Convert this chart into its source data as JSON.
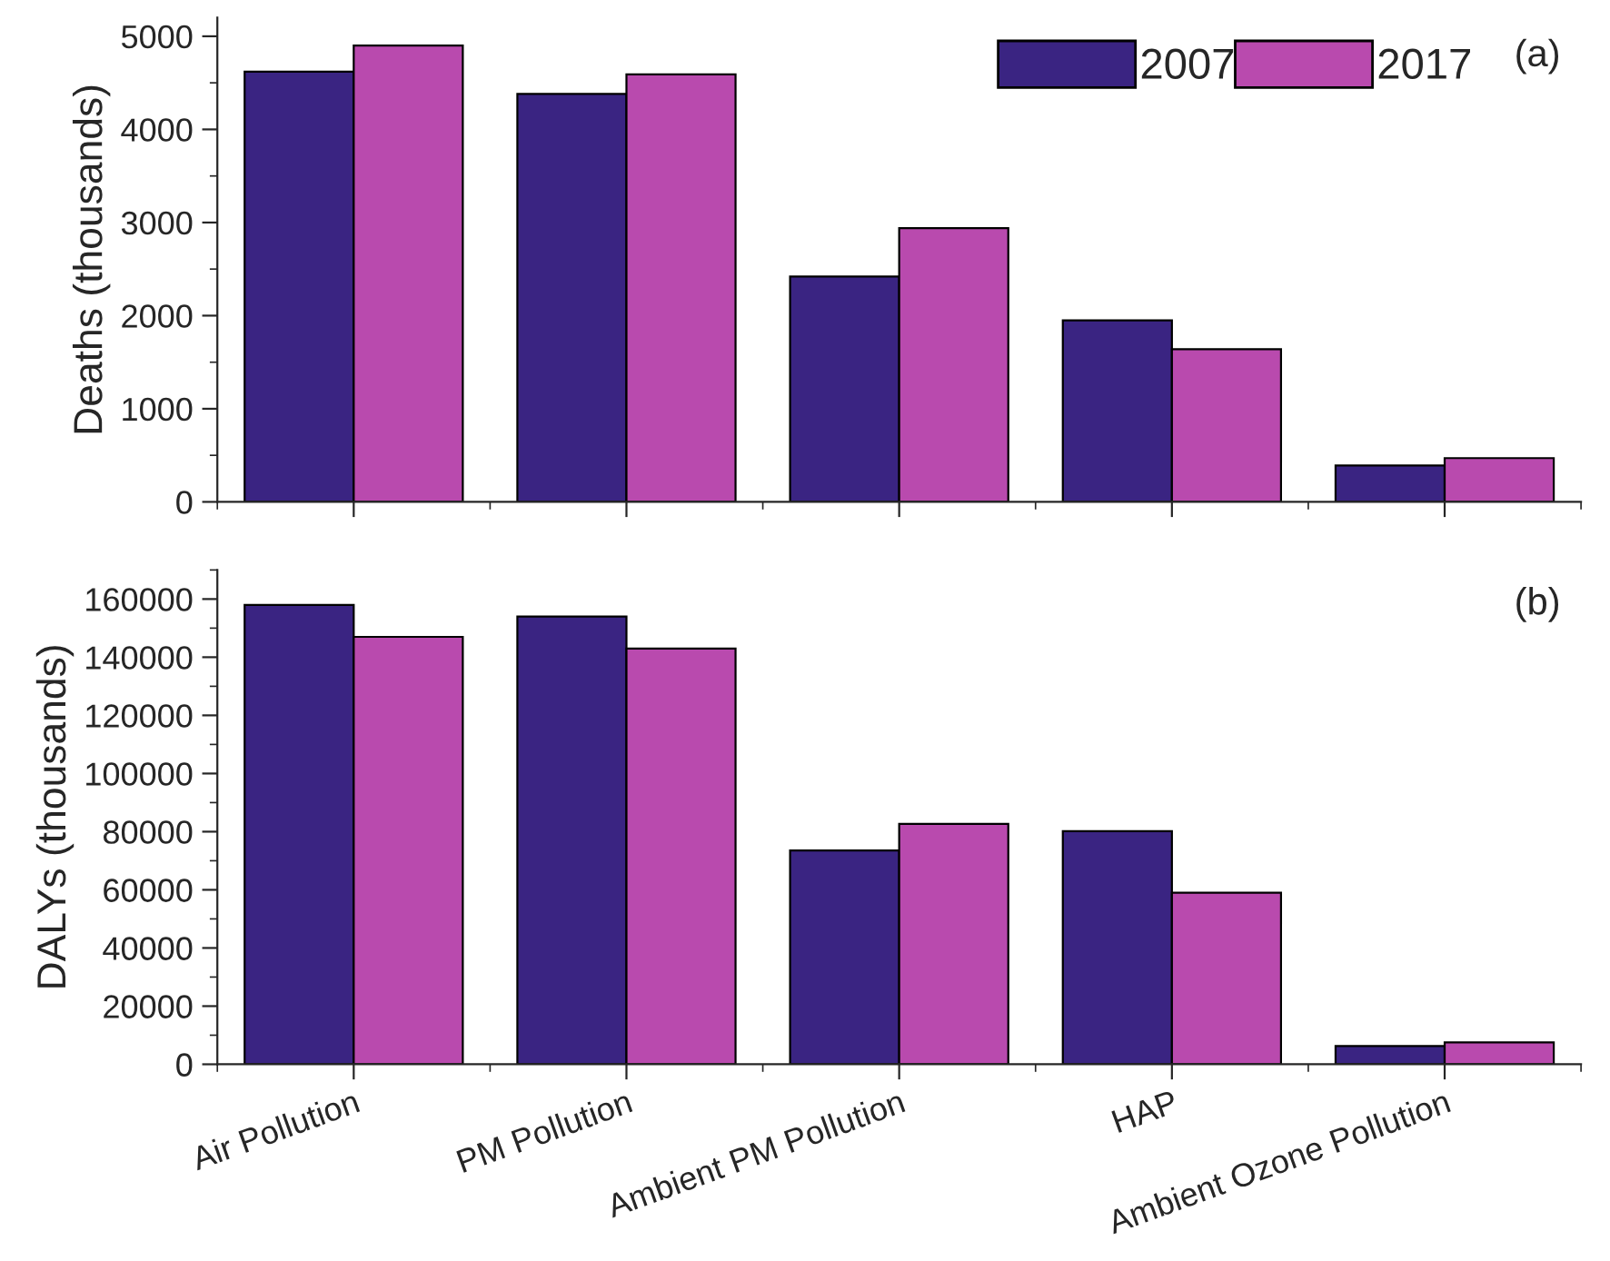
{
  "chart_data": [
    {
      "type": "bar",
      "ylabel": "Deaths (thousands)",
      "categories": [
        null,
        null,
        null,
        null,
        null
      ],
      "series": [
        {
          "name": "2007",
          "color": "#3a2482",
          "values": [
            4620,
            4380,
            2420,
            1950,
            390
          ]
        },
        {
          "name": "2017",
          "color": "#b94aae",
          "values": [
            4900,
            4590,
            2940,
            1640,
            470
          ]
        }
      ],
      "ylim": [
        0,
        5200
      ],
      "yticks": [
        0,
        1000,
        2000,
        3000,
        4000,
        5000
      ],
      "legend": "top right",
      "tick_labels": "y",
      "annotations": [
        "(a)"
      ]
    },
    {
      "type": "bar",
      "ylabel": "DALYs (thousands)",
      "categories": [
        "Air Pollution",
        "PM Pollution",
        "Ambient PM Pollution",
        "HAP",
        "Ambient Ozone Pollution"
      ],
      "series": [
        {
          "color": "#3a2482",
          "values": [
            158000,
            154000,
            73500,
            80200,
            6300
          ]
        },
        {
          "color": "#b94aae",
          "values": [
            147000,
            143000,
            82700,
            59000,
            7500
          ]
        }
      ],
      "ylim": [
        0,
        170000
      ],
      "yticks": [
        0,
        20000,
        40000,
        60000,
        80000,
        100000,
        120000,
        140000,
        160000
      ],
      "annotations": [
        "(b)"
      ]
    }
  ]
}
